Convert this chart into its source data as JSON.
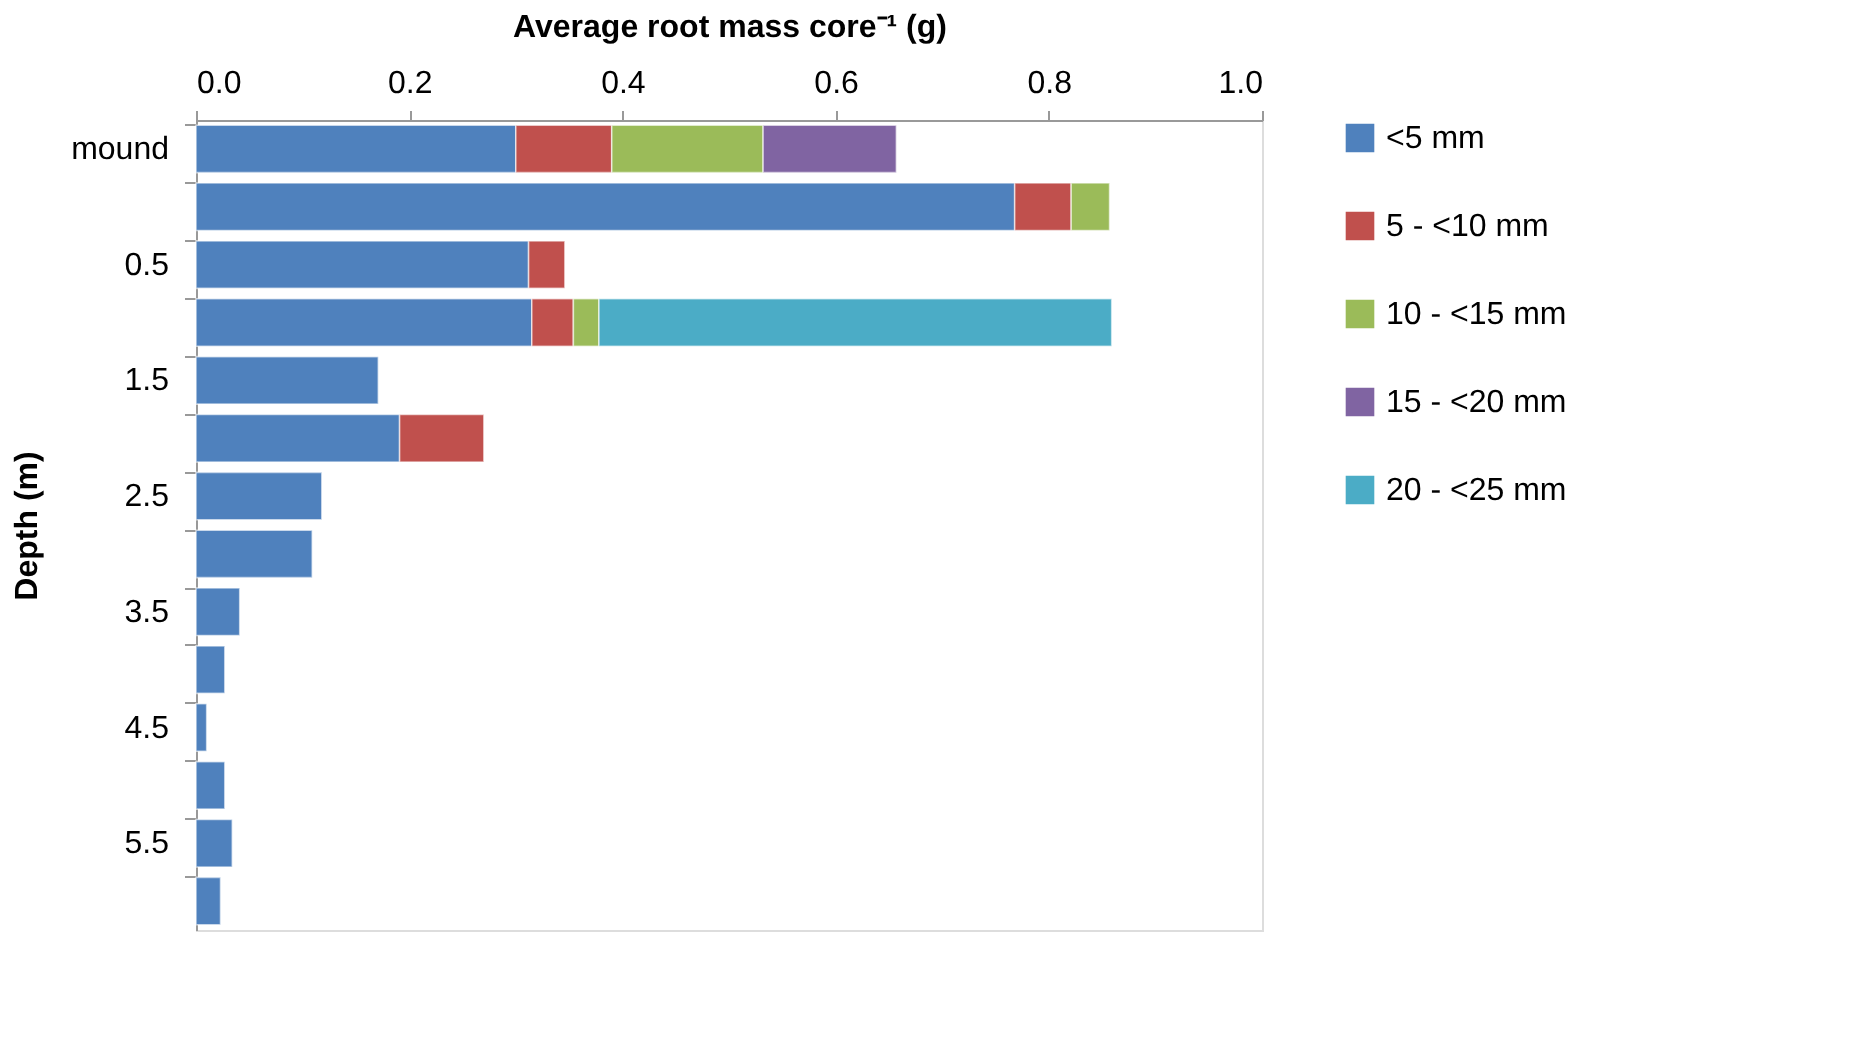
{
  "chart_data": {
    "type": "bar",
    "orientation": "horizontal",
    "stacked": true,
    "xlabel": "Average root mass core⁻¹ (g)",
    "ylabel": "Depth (m)",
    "categories": [
      "mound",
      null,
      "0.5",
      null,
      "1.5",
      null,
      "2.5",
      null,
      "3.5",
      null,
      "4.5",
      null,
      "5.5",
      null
    ],
    "series": [
      {
        "name": "<5 mm",
        "color": "#4f81bd",
        "values": [
          0.3,
          0.768,
          0.312,
          0.315,
          0.171,
          0.191,
          0.118,
          0.109,
          0.041,
          0.027,
          0.01,
          0.027,
          0.034,
          0.023
        ]
      },
      {
        "name": "5 - <10 mm",
        "color": "#c0504d",
        "values": [
          0.09,
          0.053,
          0.034,
          0.039,
          null,
          0.079,
          null,
          null,
          null,
          null,
          null,
          null,
          null,
          null
        ]
      },
      {
        "name": "10 - <15 mm",
        "color": "#9bbb59",
        "values": [
          0.142,
          0.036,
          null,
          0.024,
          null,
          null,
          null,
          null,
          null,
          null,
          null,
          null,
          null,
          null
        ]
      },
      {
        "name": "15 - <20 mm",
        "color": "#8064a2",
        "values": [
          0.125,
          null,
          null,
          null,
          null,
          null,
          null,
          null,
          null,
          null,
          null,
          null,
          null,
          null
        ]
      },
      {
        "name": "20 - <25 mm",
        "color": "#4bacc6",
        "values": [
          null,
          null,
          null,
          0.481,
          null,
          null,
          null,
          null,
          null,
          null,
          null,
          null,
          null,
          null
        ]
      }
    ],
    "xlim": [
      0,
      1
    ],
    "xticks": [
      {
        "value": 0,
        "label": "0.0"
      },
      {
        "value": 0.2,
        "label": "0.2"
      },
      {
        "value": 0.4,
        "label": "0.4"
      },
      {
        "value": 0.6,
        "label": "0.6"
      },
      {
        "value": 0.8,
        "label": "0.8"
      },
      {
        "value": 1,
        "label": "1.0"
      }
    ],
    "grid": false,
    "legend": "right"
  }
}
